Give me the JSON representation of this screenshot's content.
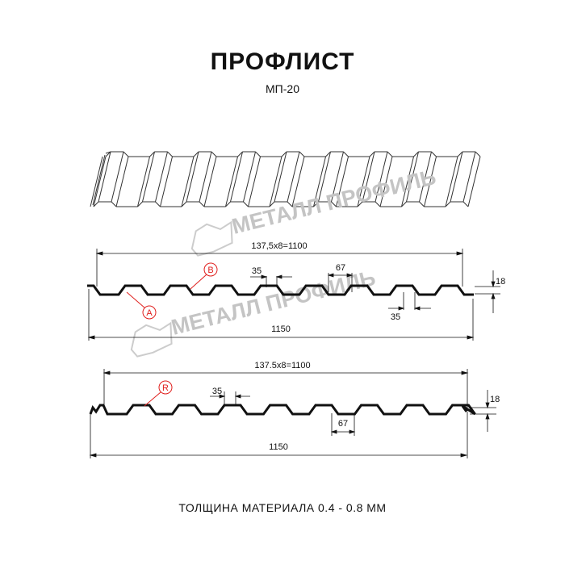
{
  "title": "ПРОФЛИСТ",
  "subtitle": "МП-20",
  "watermark": "МЕТАЛЛ ПРОФИЛЬ",
  "profile_1": {
    "pitch_label": "137,5x8=1100",
    "width_label": "1150",
    "rib_top_label": "35",
    "rib_bottom_label": "35",
    "rib_span_label": "67",
    "height_label": "18",
    "marker_a": "A",
    "marker_b": "B"
  },
  "profile_2": {
    "pitch_label": "137.5x8=1100",
    "width_label": "1150",
    "rib_top_label": "35",
    "rib_span_label": "67",
    "height_label": "18",
    "marker_r": "R"
  },
  "thickness_note": "ТОЛЩИНА МАТЕРИАЛА 0.4 - 0.8 ММ",
  "colors": {
    "line": "#111111",
    "marker": "#e0201e",
    "watermark": "#c8c8c8"
  }
}
